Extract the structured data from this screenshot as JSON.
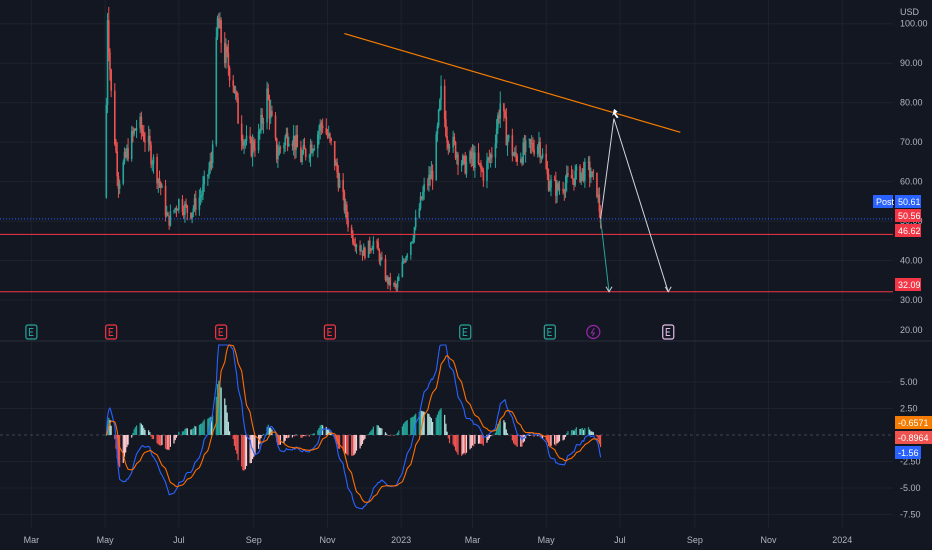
{
  "currency": "USD",
  "colors": {
    "background": "#131722",
    "grid": "#1e222d",
    "axis_text": "#b2b5be",
    "up": "#26a69a",
    "down": "#ef5350",
    "trendline": "#f57c00",
    "hline": "#f23645",
    "projection": "#d1d4dc",
    "macd": "#2962ff",
    "signal": "#ff6d00",
    "earnings_green": "#26a69a",
    "earnings_red": "#f23645",
    "earnings_pink": "#e1bee7",
    "dividend": "#9c27b0",
    "price_label": "#2962ff"
  },
  "badges": {
    "post_label": "Post",
    "post_value": "50.61",
    "last_value": "50.56",
    "level_high": "46.62",
    "level_low": "32.09",
    "macd_hist": "-0.6571",
    "macd_signal": "-0.8964",
    "macd_line": "-1.56"
  },
  "chart_data": [
    {
      "type": "candlestick",
      "y_unit": "USD",
      "ylim": [
        30,
        105
      ],
      "yticks": [
        30,
        40,
        50,
        60,
        70,
        80,
        90,
        100
      ],
      "ytick_labels": [
        "30.00",
        "40.00",
        "50.00",
        "60.00",
        "70.00",
        "80.00",
        "90.00",
        "100.00"
      ],
      "x_tick_labels": [
        "Mar",
        "May",
        "Jul",
        "Sep",
        "Nov",
        "2023",
        "Mar",
        "May",
        "Jul",
        "Sep",
        "Nov",
        "2024"
      ],
      "x_ticks": [
        "2022-03-01",
        "2022-05-01",
        "2022-07-01",
        "2022-09-01",
        "2022-11-01",
        "2023-01-01",
        "2023-03-01",
        "2023-05-01",
        "2023-07-01",
        "2023-09-01",
        "2023-11-01",
        "2024-01-01"
      ],
      "price_path": [
        [
          "2022-05-01",
          56
        ],
        [
          "2022-05-03",
          103
        ],
        [
          "2022-05-06",
          82
        ],
        [
          "2022-05-12",
          60
        ],
        [
          "2022-05-20",
          68
        ],
        [
          "2022-05-28",
          75
        ],
        [
          "2022-06-05",
          70
        ],
        [
          "2022-06-15",
          60
        ],
        [
          "2022-06-22",
          50
        ],
        [
          "2022-07-01",
          55
        ],
        [
          "2022-07-10",
          52
        ],
        [
          "2022-07-20",
          57
        ],
        [
          "2022-07-28",
          65
        ],
        [
          "2022-08-02",
          100
        ],
        [
          "2022-08-08",
          92
        ],
        [
          "2022-08-15",
          86
        ],
        [
          "2022-08-20",
          74
        ],
        [
          "2022-08-28",
          68
        ],
        [
          "2022-09-05",
          71
        ],
        [
          "2022-09-12",
          82
        ],
        [
          "2022-09-20",
          67
        ],
        [
          "2022-10-01",
          73
        ],
        [
          "2022-10-10",
          66
        ],
        [
          "2022-10-20",
          70
        ],
        [
          "2022-10-28",
          75
        ],
        [
          "2022-11-05",
          68
        ],
        [
          "2022-11-12",
          58
        ],
        [
          "2022-11-20",
          47
        ],
        [
          "2022-12-01",
          42
        ],
        [
          "2022-12-10",
          45
        ],
        [
          "2022-12-20",
          35
        ],
        [
          "2022-12-28",
          33
        ],
        [
          "2023-01-03",
          40
        ],
        [
          "2023-01-10",
          46
        ],
        [
          "2023-01-20",
          58
        ],
        [
          "2023-01-28",
          63
        ],
        [
          "2023-02-03",
          82
        ],
        [
          "2023-02-08",
          72
        ],
        [
          "2023-02-15",
          68
        ],
        [
          "2023-02-22",
          64
        ],
        [
          "2023-03-01",
          66
        ],
        [
          "2023-03-10",
          62
        ],
        [
          "2023-03-18",
          68
        ],
        [
          "2023-03-24",
          80
        ],
        [
          "2023-03-29",
          72
        ],
        [
          "2023-04-05",
          66
        ],
        [
          "2023-04-15",
          68
        ],
        [
          "2023-04-25",
          70
        ],
        [
          "2023-05-03",
          60
        ],
        [
          "2023-05-10",
          58
        ],
        [
          "2023-05-18",
          60
        ],
        [
          "2023-05-28",
          62
        ],
        [
          "2023-06-05",
          63
        ],
        [
          "2023-06-12",
          58
        ],
        [
          "2023-06-15",
          50.56
        ]
      ],
      "trendline": {
        "from": [
          "2022-11-15",
          97.5
        ],
        "to": [
          "2023-08-20",
          72.5
        ]
      },
      "horizontal_levels": [
        46.62,
        32.09
      ],
      "current_price": 50.56,
      "post_market_price": 50.61,
      "projection": [
        {
          "from": [
            "2023-06-15",
            50.56
          ],
          "to": [
            "2023-06-22",
            32.09
          ]
        },
        {
          "from": [
            "2023-06-15",
            50.56
          ],
          "via": [
            "2023-06-26",
            76
          ],
          "to": [
            "2023-08-10",
            32.09
          ]
        }
      ],
      "events": [
        {
          "date": "2022-03-01",
          "kind": "earnings",
          "color": "green"
        },
        {
          "date": "2022-05-06",
          "kind": "earnings",
          "color": "red"
        },
        {
          "date": "2022-08-05",
          "kind": "earnings",
          "color": "red"
        },
        {
          "date": "2022-11-03",
          "kind": "earnings",
          "color": "red"
        },
        {
          "date": "2023-02-23",
          "kind": "earnings",
          "color": "green"
        },
        {
          "date": "2023-05-04",
          "kind": "earnings",
          "color": "green"
        },
        {
          "date": "2023-06-09",
          "kind": "split",
          "color": "purple"
        },
        {
          "date": "2023-08-10",
          "kind": "earnings",
          "color": "pink"
        }
      ]
    },
    {
      "type": "macd",
      "ylim": [
        -8.5,
        8.5
      ],
      "yticks": [
        -7.5,
        -5.0,
        -2.5,
        2.5,
        5.0
      ],
      "ytick_labels": [
        "-7.50",
        "-5.00",
        "-2.50",
        "2.50",
        "5.00"
      ],
      "last_values": {
        "histogram": -0.6571,
        "signal": -0.8964,
        "macd": -1.56
      }
    }
  ]
}
